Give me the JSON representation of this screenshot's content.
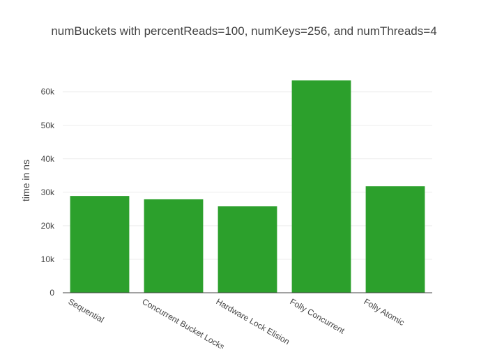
{
  "chart_data": {
    "type": "bar",
    "title": "numBuckets with percentReads=100, numKeys=256, and numThreads=4",
    "xlabel": "",
    "ylabel": "time in ns",
    "categories": [
      "Sequential",
      "Concurrent Bucket Locks",
      "Hardware Lock Elision",
      "Folly Concurrent",
      "Folly Atomic"
    ],
    "values": [
      28900,
      27900,
      25800,
      63400,
      31800
    ],
    "ylim": [
      0,
      66600
    ],
    "yticks": [
      0,
      10000,
      20000,
      30000,
      40000,
      50000,
      60000
    ],
    "ytick_labels": [
      "0",
      "10k",
      "20k",
      "30k",
      "40k",
      "50k",
      "60k"
    ],
    "grid": true,
    "bar_color": "#2ca02c"
  }
}
